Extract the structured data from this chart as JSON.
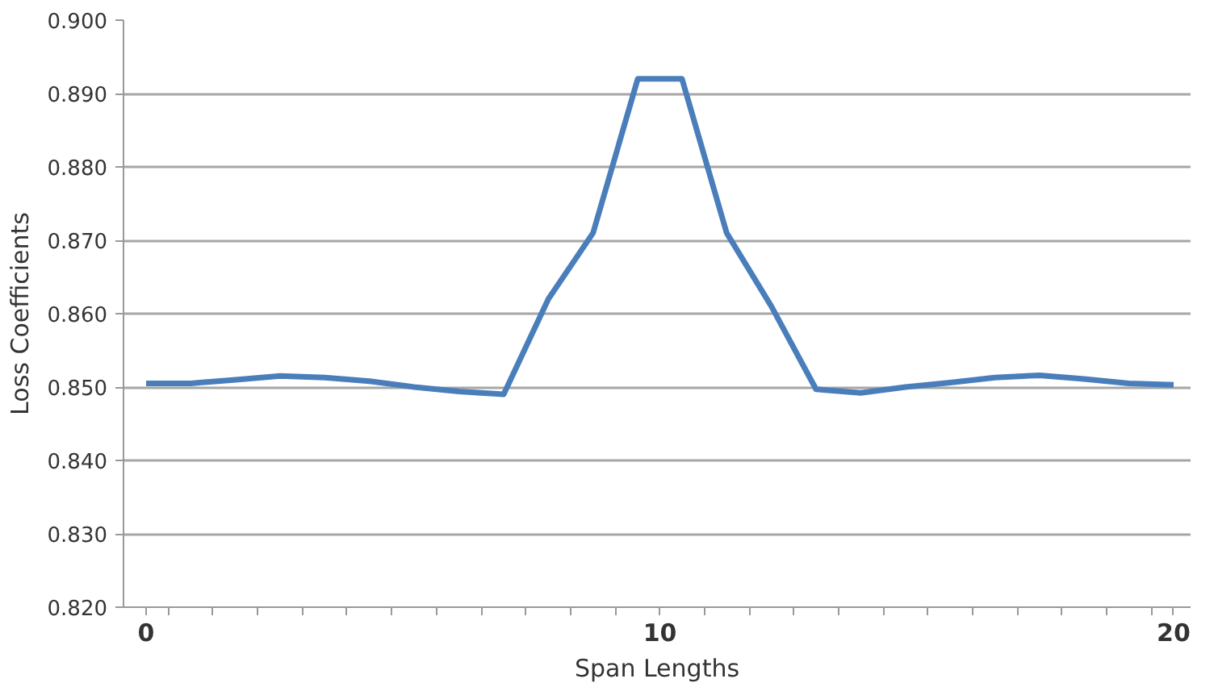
{
  "chart_data": {
    "type": "line",
    "xlabel": "Span Lengths",
    "ylabel": "Loss Coefficients",
    "x": [
      0,
      0.87,
      1.74,
      2.61,
      3.48,
      4.35,
      5.22,
      6.09,
      6.96,
      7.83,
      8.7,
      9.57,
      10.43,
      11.3,
      12.17,
      13.04,
      13.91,
      14.78,
      15.65,
      16.52,
      17.39,
      18.26,
      19.13,
      20
    ],
    "series": [
      {
        "color": "#4a7ebb",
        "values": [
          0.8505,
          0.8505,
          0.851,
          0.8515,
          0.8513,
          0.8508,
          0.85,
          0.8494,
          0.849,
          0.862,
          0.871,
          0.892,
          0.892,
          0.871,
          0.861,
          0.8497,
          0.8492,
          0.85,
          0.8506,
          0.8513,
          0.8516,
          0.8511,
          0.8505,
          0.8503
        ]
      }
    ],
    "xlim": [
      -0.44,
      20.33
    ],
    "ylim": [
      0.82,
      0.9
    ],
    "xticks": [
      0,
      {
        "value": 0.43,
        "label": null
      },
      {
        "value": 1.3,
        "label": null
      },
      {
        "value": 2.17,
        "label": null
      },
      {
        "value": 3.04,
        "label": null
      },
      {
        "value": 3.91,
        "label": null
      },
      {
        "value": 4.78,
        "label": null
      },
      {
        "value": 5.65,
        "label": null
      },
      {
        "value": 6.52,
        "label": null
      },
      {
        "value": 7.39,
        "label": null
      },
      {
        "value": 8.26,
        "label": null
      },
      {
        "value": 9.13,
        "label": null
      },
      10,
      {
        "value": 10.87,
        "label": null
      },
      {
        "value": 11.74,
        "label": null
      },
      {
        "value": 12.61,
        "label": null
      },
      {
        "value": 13.48,
        "label": null
      },
      {
        "value": 14.35,
        "label": null
      },
      {
        "value": 15.22,
        "label": null
      },
      {
        "value": 16.09,
        "label": null
      },
      {
        "value": 16.96,
        "label": null
      },
      {
        "value": 17.83,
        "label": null
      },
      {
        "value": 18.7,
        "label": null
      },
      {
        "value": 19.57,
        "label": null
      },
      20
    ],
    "yticks": [
      {
        "value": 0.82,
        "label": "0.820"
      },
      {
        "value": 0.83,
        "label": "0.830"
      },
      {
        "value": 0.84,
        "label": "0.840"
      },
      {
        "value": 0.85,
        "label": "0.850"
      },
      {
        "value": 0.86,
        "label": "0.860"
      },
      {
        "value": 0.87,
        "label": "0.870"
      },
      {
        "value": 0.88,
        "label": "0.880"
      },
      {
        "value": 0.89,
        "label": "0.890"
      },
      {
        "value": 0.9,
        "label": "0.900"
      }
    ],
    "grid": "y",
    "marker": "none",
    "line_style": "solid"
  }
}
